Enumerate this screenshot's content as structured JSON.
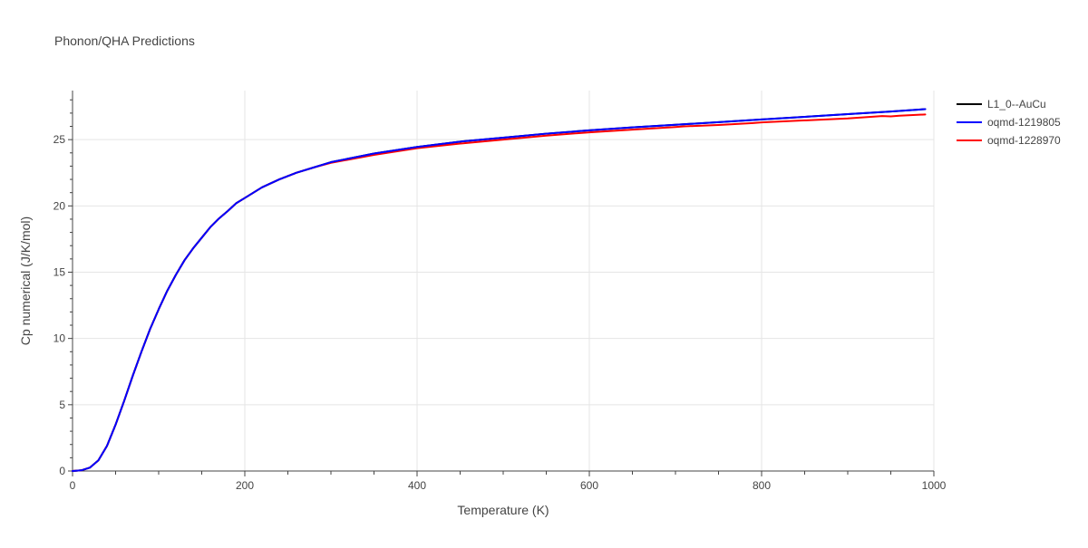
{
  "chart_data": {
    "type": "line",
    "title": "Phonon/QHA Predictions",
    "xlabel": "Temperature (K)",
    "ylabel": "Cp numerical (J/K/mol)",
    "xlim": [
      0,
      1000
    ],
    "ylim": [
      0,
      28.7
    ],
    "xticks": [
      0,
      200,
      400,
      600,
      800,
      1000
    ],
    "yticks": [
      0,
      5,
      10,
      15,
      20,
      25
    ],
    "grid": true,
    "legend_position": "top-right",
    "series": [
      {
        "name": "L1_0--AuCu",
        "color": "#000000",
        "x": [
          0,
          10,
          20,
          30,
          40,
          50,
          60,
          70,
          80,
          90,
          100,
          110,
          120,
          130,
          140,
          150,
          160,
          170,
          180,
          190,
          200,
          220,
          240,
          260,
          280,
          300,
          350,
          400,
          450,
          500,
          550,
          600,
          650,
          700,
          750,
          800,
          850,
          900,
          950,
          990
        ],
        "y": [
          0,
          0.05,
          0.25,
          0.8,
          1.9,
          3.5,
          5.3,
          7.2,
          9.0,
          10.7,
          12.2,
          13.6,
          14.8,
          15.9,
          16.8,
          17.6,
          18.4,
          19.05,
          19.6,
          20.2,
          20.6,
          21.4,
          22.0,
          22.5,
          22.9,
          23.3,
          23.95,
          24.45,
          24.85,
          25.15,
          25.45,
          25.7,
          25.92,
          26.12,
          26.32,
          26.52,
          26.72,
          26.92,
          27.12,
          27.3
        ]
      },
      {
        "name": "oqmd-1219805",
        "color": "#0000ff",
        "x": [
          0,
          10,
          20,
          30,
          40,
          50,
          60,
          70,
          80,
          90,
          100,
          110,
          120,
          130,
          140,
          150,
          160,
          170,
          180,
          190,
          200,
          220,
          240,
          260,
          280,
          300,
          350,
          400,
          450,
          500,
          550,
          600,
          650,
          700,
          750,
          800,
          850,
          900,
          950,
          990
        ],
        "y": [
          0,
          0.05,
          0.25,
          0.8,
          1.9,
          3.5,
          5.3,
          7.2,
          9.0,
          10.7,
          12.2,
          13.6,
          14.8,
          15.9,
          16.8,
          17.6,
          18.4,
          19.05,
          19.6,
          20.2,
          20.6,
          21.4,
          22.0,
          22.5,
          22.9,
          23.3,
          23.95,
          24.45,
          24.85,
          25.15,
          25.45,
          25.7,
          25.92,
          26.12,
          26.32,
          26.52,
          26.72,
          26.92,
          27.12,
          27.3
        ]
      },
      {
        "name": "oqmd-1228970",
        "color": "#ff0000",
        "x": [
          0,
          10,
          20,
          30,
          40,
          50,
          60,
          70,
          80,
          90,
          100,
          110,
          120,
          130,
          140,
          150,
          160,
          170,
          180,
          190,
          200,
          220,
          240,
          260,
          280,
          300,
          350,
          400,
          450,
          500,
          550,
          600,
          650,
          700,
          710,
          750,
          790,
          800,
          850,
          900,
          940,
          950,
          960,
          990
        ],
        "y": [
          0,
          0.05,
          0.25,
          0.8,
          1.9,
          3.5,
          5.3,
          7.2,
          9.0,
          10.7,
          12.2,
          13.6,
          14.8,
          15.9,
          16.8,
          17.6,
          18.4,
          19.05,
          19.6,
          20.2,
          20.6,
          21.4,
          22.0,
          22.5,
          22.9,
          23.25,
          23.85,
          24.35,
          24.7,
          25.0,
          25.3,
          25.55,
          25.75,
          25.95,
          26.0,
          26.1,
          26.25,
          26.3,
          26.45,
          26.6,
          26.78,
          26.75,
          26.8,
          26.9
        ]
      }
    ]
  }
}
